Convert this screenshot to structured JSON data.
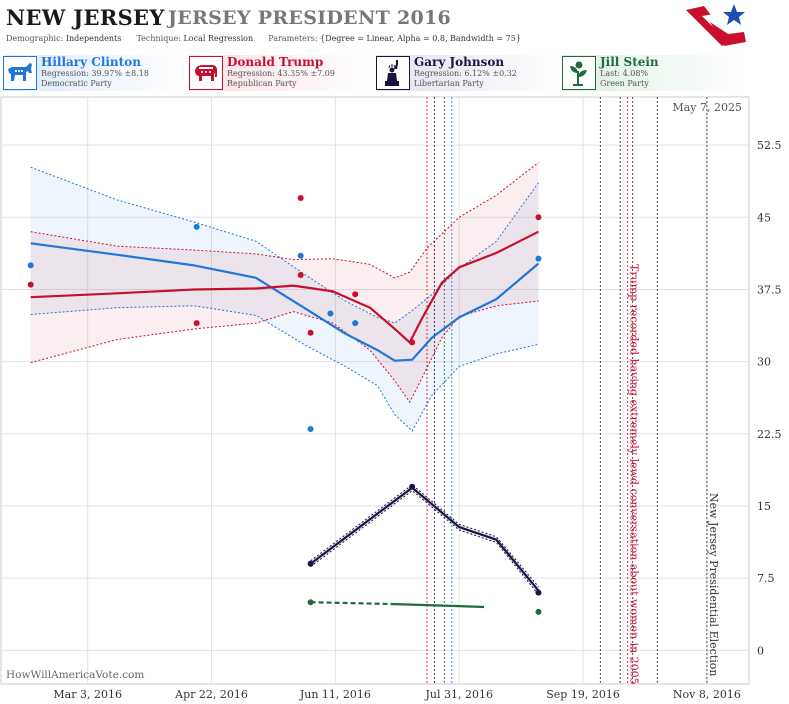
{
  "header": {
    "state": "NEW JERSEY",
    "race": "JERSEY PRESIDENT 2016",
    "demographic_label": "Demographic:",
    "demographic": "Independents",
    "technique_label": "Technique:",
    "technique": "Local Regression",
    "parameters_label": "Parameters:",
    "parameters": "{Degree = Linear, Alpha = 0.8, Bandwidth = 75}"
  },
  "candidates": [
    {
      "name": "Hillary Clinton",
      "stat": "Regression: 39.97% ±8.18",
      "party": "Democratic Party",
      "color": "#1f77d8",
      "icon": "donkey-icon"
    },
    {
      "name": "Donald Trump",
      "stat": "Regression: 43.35% ±7.09",
      "party": "Republican Party",
      "color": "#c8102e",
      "icon": "elephant-icon"
    },
    {
      "name": "Gary Johnson",
      "stat": "Regression: 6.12% ±0.32",
      "party": "Libertarian Party",
      "color": "#1a1446",
      "icon": "statue-of-liberty-icon"
    },
    {
      "name": "Jill Stein",
      "stat": "Last: 4.08%",
      "party": "Green Party",
      "color": "#1e6b3c",
      "icon": "plant-icon"
    }
  ],
  "chart_data": {
    "type": "line",
    "x_axis": {
      "type": "date",
      "range": [
        "2016-01-28",
        "2016-11-25"
      ],
      "tick_labels": [
        "Mar 3, 2016",
        "Apr 22, 2016",
        "Jun 11, 2016",
        "Jul 31, 2016",
        "Sep 19, 2016",
        "Nov 8, 2016"
      ],
      "tick_dates": [
        "2016-03-03",
        "2016-04-22",
        "2016-06-11",
        "2016-07-31",
        "2016-09-19",
        "2016-11-08"
      ]
    },
    "y_axis": {
      "range": [
        -3.5,
        57.5
      ],
      "ticks": [
        0,
        7.5,
        15,
        22.5,
        30,
        37.5,
        45,
        52.5
      ],
      "tick_labels": [
        "0",
        "7.5",
        "15",
        "22.5",
        "30",
        "37.5",
        "45",
        "52.5"
      ],
      "position": "right"
    },
    "grid": true,
    "date_stamp": "May 7, 2025",
    "watermark": "HowWillAmericaVote.com",
    "series": [
      {
        "name": "Hillary Clinton",
        "color": "#1f77d8",
        "points": [
          [
            "2016-02-09",
            40
          ],
          [
            "2016-04-16",
            44
          ],
          [
            "2016-05-28",
            41
          ],
          [
            "2016-06-01",
            23
          ],
          [
            "2016-06-09",
            35
          ],
          [
            "2016-06-19",
            34
          ],
          [
            "2016-09-01",
            40.7
          ]
        ],
        "trend": [
          [
            "2016-02-09",
            42.3
          ],
          [
            "2016-03-15",
            41.1
          ],
          [
            "2016-04-15",
            40.0
          ],
          [
            "2016-05-10",
            38.7
          ],
          [
            "2016-05-30",
            35.5
          ],
          [
            "2016-06-15",
            32.9
          ],
          [
            "2016-06-28",
            31.2
          ],
          [
            "2016-07-05",
            30.1
          ],
          [
            "2016-07-12",
            30.2
          ],
          [
            "2016-07-20",
            32.5
          ],
          [
            "2016-07-31",
            34.6
          ],
          [
            "2016-08-15",
            36.5
          ],
          [
            "2016-09-01",
            40.2
          ]
        ],
        "band_upper": [
          [
            "2016-02-09",
            50.2
          ],
          [
            "2016-03-15",
            46.8
          ],
          [
            "2016-04-15",
            44.5
          ],
          [
            "2016-05-10",
            42.5
          ],
          [
            "2016-05-30",
            39.0
          ],
          [
            "2016-06-15",
            36.3
          ],
          [
            "2016-06-28",
            34.6
          ],
          [
            "2016-07-05",
            34.0
          ],
          [
            "2016-07-12",
            35.3
          ],
          [
            "2016-07-20",
            37.0
          ],
          [
            "2016-07-31",
            39.7
          ],
          [
            "2016-08-15",
            42.5
          ],
          [
            "2016-09-01",
            48.6
          ]
        ],
        "band_lower": [
          [
            "2016-02-09",
            34.9
          ],
          [
            "2016-03-15",
            35.6
          ],
          [
            "2016-04-15",
            35.8
          ],
          [
            "2016-05-10",
            34.8
          ],
          [
            "2016-05-30",
            31.7
          ],
          [
            "2016-06-15",
            29.5
          ],
          [
            "2016-06-28",
            27.5
          ],
          [
            "2016-07-05",
            24.5
          ],
          [
            "2016-07-12",
            22.8
          ],
          [
            "2016-07-20",
            26.5
          ],
          [
            "2016-07-31",
            29.5
          ],
          [
            "2016-08-15",
            30.8
          ],
          [
            "2016-09-01",
            31.8
          ]
        ]
      },
      {
        "name": "Donald Trump",
        "color": "#c8102e",
        "points": [
          [
            "2016-02-09",
            38
          ],
          [
            "2016-04-16",
            34
          ],
          [
            "2016-05-28",
            39
          ],
          [
            "2016-05-28",
            47
          ],
          [
            "2016-06-01",
            33
          ],
          [
            "2016-06-19",
            37
          ],
          [
            "2016-07-12",
            32
          ],
          [
            "2016-09-01",
            45
          ]
        ],
        "trend": [
          [
            "2016-02-09",
            36.7
          ],
          [
            "2016-03-15",
            37.1
          ],
          [
            "2016-04-15",
            37.5
          ],
          [
            "2016-05-10",
            37.6
          ],
          [
            "2016-05-25",
            37.9
          ],
          [
            "2016-06-10",
            37.3
          ],
          [
            "2016-06-25",
            35.6
          ],
          [
            "2016-07-05",
            33.4
          ],
          [
            "2016-07-11",
            32.0
          ],
          [
            "2016-07-16",
            34.5
          ],
          [
            "2016-07-24",
            38.2
          ],
          [
            "2016-07-31",
            39.8
          ],
          [
            "2016-08-15",
            41.3
          ],
          [
            "2016-09-01",
            43.5
          ]
        ],
        "band_upper": [
          [
            "2016-02-09",
            43.5
          ],
          [
            "2016-03-15",
            42.0
          ],
          [
            "2016-04-15",
            41.6
          ],
          [
            "2016-05-10",
            41.2
          ],
          [
            "2016-05-25",
            40.6
          ],
          [
            "2016-06-10",
            40.7
          ],
          [
            "2016-06-25",
            40.1
          ],
          [
            "2016-07-05",
            38.7
          ],
          [
            "2016-07-11",
            39.3
          ],
          [
            "2016-07-18",
            41.8
          ],
          [
            "2016-07-31",
            45.0
          ],
          [
            "2016-08-15",
            47.3
          ],
          [
            "2016-09-01",
            50.7
          ]
        ],
        "band_lower": [
          [
            "2016-02-09",
            29.9
          ],
          [
            "2016-03-15",
            32.3
          ],
          [
            "2016-04-15",
            33.4
          ],
          [
            "2016-05-10",
            34.0
          ],
          [
            "2016-05-25",
            35.2
          ],
          [
            "2016-06-10",
            34.0
          ],
          [
            "2016-06-25",
            31.2
          ],
          [
            "2016-07-05",
            28.0
          ],
          [
            "2016-07-11",
            25.8
          ],
          [
            "2016-07-15",
            27.8
          ],
          [
            "2016-07-24",
            32.5
          ],
          [
            "2016-07-31",
            34.7
          ],
          [
            "2016-08-15",
            35.8
          ],
          [
            "2016-09-01",
            36.3
          ]
        ]
      },
      {
        "name": "Gary Johnson",
        "color": "#1a1446",
        "points": [
          [
            "2016-06-01",
            9
          ],
          [
            "2016-07-12",
            17
          ],
          [
            "2016-09-01",
            6
          ]
        ],
        "trend": [
          [
            "2016-06-01",
            9.0
          ],
          [
            "2016-07-12",
            16.9
          ],
          [
            "2016-07-31",
            12.8
          ],
          [
            "2016-08-15",
            11.5
          ],
          [
            "2016-09-01",
            6.2
          ]
        ],
        "band_upper": [
          [
            "2016-06-01",
            9.3
          ],
          [
            "2016-07-12",
            17.2
          ],
          [
            "2016-07-31",
            13.1
          ],
          [
            "2016-08-15",
            11.8
          ],
          [
            "2016-09-01",
            6.6
          ]
        ],
        "band_lower": [
          [
            "2016-06-01",
            8.7
          ],
          [
            "2016-07-12",
            16.6
          ],
          [
            "2016-07-31",
            12.5
          ],
          [
            "2016-08-15",
            11.2
          ],
          [
            "2016-09-01",
            5.8
          ]
        ]
      },
      {
        "name": "Jill Stein",
        "color": "#1e6b3c",
        "points": [
          [
            "2016-06-01",
            5
          ],
          [
            "2016-09-01",
            4
          ]
        ],
        "trend": [
          [
            "2016-06-01",
            5.0
          ],
          [
            "2016-07-05",
            4.8
          ],
          [
            "2016-07-31",
            4.6
          ],
          [
            "2016-08-10",
            4.5
          ]
        ],
        "trend_dashed_until": "2016-07-05"
      }
    ],
    "event_lines": [
      {
        "date": "2016-07-18",
        "color": "#c8102e",
        "style": "dotted"
      },
      {
        "date": "2016-07-21",
        "color": "#1a1446",
        "style": "dotted"
      },
      {
        "date": "2016-07-25",
        "color": "#1e6b3c",
        "style": "dotted"
      },
      {
        "date": "2016-07-28",
        "color": "#1f77d8",
        "style": "dotted"
      },
      {
        "date": "2016-09-26",
        "color": "#333333",
        "style": "dotted"
      },
      {
        "date": "2016-10-04",
        "color": "#1a1446",
        "style": "dotted"
      },
      {
        "date": "2016-10-07",
        "color": "#c8102e",
        "style": "dotted"
      },
      {
        "date": "2016-10-09",
        "color": "#333333",
        "style": "dotted"
      },
      {
        "date": "2016-10-19",
        "color": "#333333",
        "style": "dotted"
      },
      {
        "date": "2016-11-08",
        "color": "#333333",
        "style": "dotted"
      }
    ],
    "annotations": [
      {
        "date": "2016-10-07",
        "text": "Trump recorded having extremely lewd conversation about women in 2005",
        "color": "#c8102e"
      },
      {
        "date": "2016-11-08",
        "text": "New Jersey Presidential Election",
        "color": "#333333"
      }
    ]
  }
}
